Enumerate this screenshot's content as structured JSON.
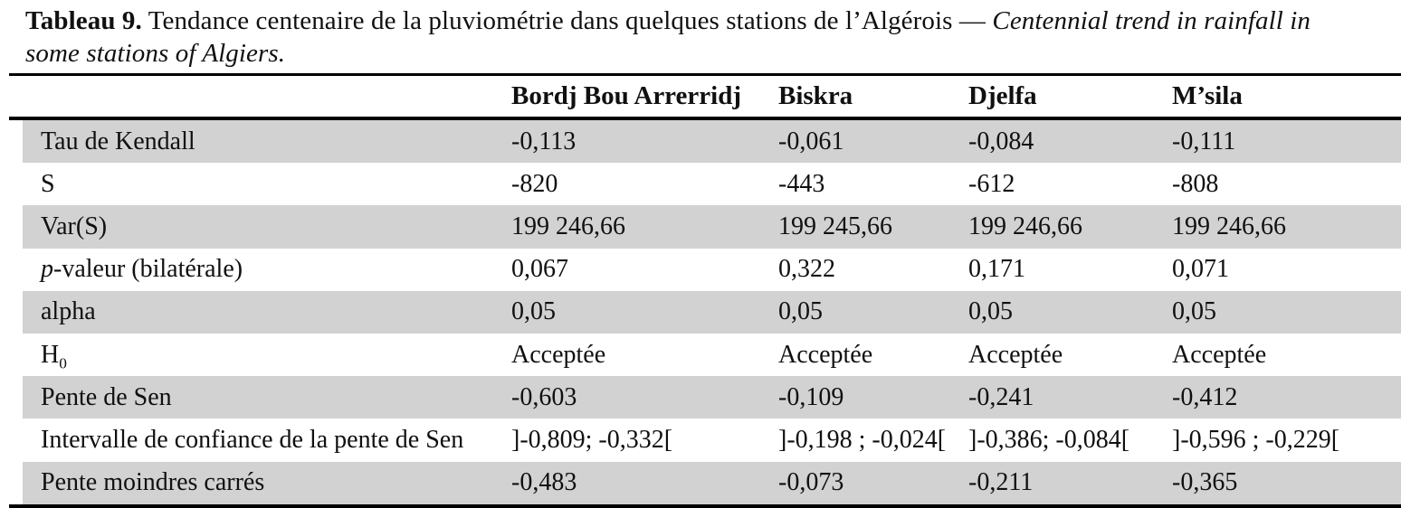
{
  "caption": {
    "bold": "Tableau 9.",
    "fr": " Tendance centenaire de la pluviométrie dans quelques stations de l’Algérois ",
    "dash": "— ",
    "en_line1": "Centennial trend in rainfall in",
    "en_line2": "some stations of Algiers."
  },
  "table": {
    "columns": [
      "",
      "Bordj Bou Arrerridj",
      "Biskra",
      "Djelfa",
      "M’sila"
    ],
    "rows": [
      {
        "label": "Tau de Kendall",
        "values": [
          "-0,113",
          "-0,061",
          "-0,084",
          "-0,111"
        ]
      },
      {
        "label": "S",
        "values": [
          "-820",
          "-443",
          "-612",
          "-808"
        ]
      },
      {
        "label": "Var(S)",
        "values": [
          "199 246,66",
          "199 245,66",
          "199 246,66",
          "199 246,66"
        ]
      },
      {
        "label_italic": "p",
        "label_rest": "-valeur (bilatérale)",
        "values": [
          "0,067",
          "0,322",
          "0,171",
          "0,071"
        ]
      },
      {
        "label": "alpha",
        "values": [
          "0,05",
          "0,05",
          "0,05",
          "0,05"
        ]
      },
      {
        "label": "H",
        "label_sub": "0",
        "values": [
          "Acceptée",
          "Acceptée",
          "Acceptée",
          "Acceptée"
        ]
      },
      {
        "label": "Pente de Sen",
        "values": [
          "-0,603",
          "-0,109",
          "-0,241",
          "-0,412"
        ]
      },
      {
        "label": "Intervalle de confiance de la pente de Sen",
        "values": [
          "]-0,809; -0,332[",
          "]-0,198 ; -0,024[",
          "]-0,386; -0,084[",
          "]-0,596 ; -0,229["
        ]
      },
      {
        "label": "Pente moindres carrés",
        "values": [
          "-0,483",
          "-0,073",
          "-0,211",
          "-0,365"
        ]
      }
    ]
  },
  "colors": {
    "stripe": "#d2d2d2",
    "rule": "#000000",
    "text": "#101010"
  }
}
